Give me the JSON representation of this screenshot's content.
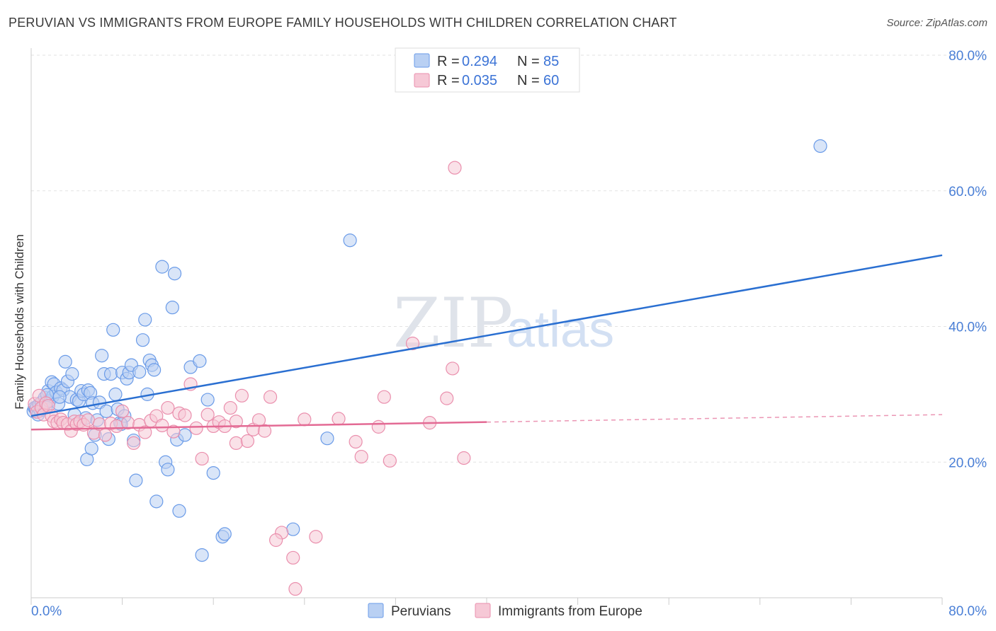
{
  "title": "PERUVIAN VS IMMIGRANTS FROM EUROPE FAMILY HOUSEHOLDS WITH CHILDREN CORRELATION CHART",
  "source": "Source: ZipAtlas.com",
  "watermark": {
    "zip": "ZIP",
    "atlas": "atlas"
  },
  "chart_data": {
    "type": "scatter",
    "title": "PERUVIAN VS IMMIGRANTS FROM EUROPE FAMILY HOUSEHOLDS WITH CHILDREN CORRELATION CHART",
    "xlabel": "",
    "ylabel": "Family Households with Children",
    "xlim": [
      0,
      80
    ],
    "ylim": [
      0,
      80
    ],
    "x_tick_labels": [
      "0.0%",
      "80.0%"
    ],
    "y_ticks": [
      20,
      40,
      60,
      80
    ],
    "y_tick_labels": [
      "20.0%",
      "40.0%",
      "60.0%",
      "80.0%"
    ],
    "grid": true,
    "legend": {
      "position": "top-center",
      "entries": [
        {
          "r_label": "R =",
          "r_value": "0.294",
          "n_label": "N =",
          "n_value": "85"
        },
        {
          "r_label": "R =",
          "r_value": "0.035",
          "n_label": "N =",
          "n_value": "60"
        }
      ]
    },
    "series": [
      {
        "name": "Peruvians",
        "color": "#6a9be8",
        "fill": "#b9d0f3",
        "line_color": "#2a6fd1",
        "trend": {
          "x0": 0,
          "y0": 26.8,
          "x1": 80,
          "y1": 50.5,
          "dashed_from": null
        },
        "points": [
          [
            0.2,
            27.5
          ],
          [
            0.3,
            28.0
          ],
          [
            0.4,
            27.8
          ],
          [
            0.5,
            28.2
          ],
          [
            0.6,
            27.0
          ],
          [
            0.7,
            28.5
          ],
          [
            0.8,
            27.6
          ],
          [
            0.9,
            28.8
          ],
          [
            1.0,
            27.9
          ],
          [
            1.1,
            28.3
          ],
          [
            1.2,
            29.5
          ],
          [
            1.3,
            28.1
          ],
          [
            1.5,
            30.5
          ],
          [
            1.6,
            29.0
          ],
          [
            1.8,
            31.8
          ],
          [
            1.9,
            29.7
          ],
          [
            2.0,
            31.5
          ],
          [
            2.2,
            30.3
          ],
          [
            2.4,
            28.6
          ],
          [
            2.6,
            30.9
          ],
          [
            2.8,
            30.6
          ],
          [
            3.0,
            34.8
          ],
          [
            3.2,
            31.9
          ],
          [
            3.4,
            29.6
          ],
          [
            3.6,
            33.0
          ],
          [
            3.8,
            27.0
          ],
          [
            4.0,
            29.2
          ],
          [
            4.2,
            29.0
          ],
          [
            4.4,
            30.5
          ],
          [
            4.6,
            30.0
          ],
          [
            4.8,
            26.5
          ],
          [
            5.0,
            30.6
          ],
          [
            5.2,
            30.2
          ],
          [
            5.4,
            28.7
          ],
          [
            5.6,
            24.0
          ],
          [
            5.8,
            26.2
          ],
          [
            6.0,
            28.8
          ],
          [
            6.2,
            35.7
          ],
          [
            6.4,
            33.0
          ],
          [
            6.6,
            27.5
          ],
          [
            6.8,
            23.4
          ],
          [
            7.0,
            33.0
          ],
          [
            7.2,
            39.5
          ],
          [
            7.4,
            30.0
          ],
          [
            7.6,
            27.8
          ],
          [
            7.8,
            25.8
          ],
          [
            8.0,
            33.2
          ],
          [
            8.2,
            26.8
          ],
          [
            8.4,
            32.3
          ],
          [
            8.6,
            33.2
          ],
          [
            8.8,
            34.3
          ],
          [
            9.0,
            23.2
          ],
          [
            9.2,
            17.3
          ],
          [
            9.5,
            33.3
          ],
          [
            9.8,
            38.0
          ],
          [
            10.0,
            41.0
          ],
          [
            10.2,
            30.0
          ],
          [
            10.4,
            35.0
          ],
          [
            10.6,
            34.3
          ],
          [
            10.8,
            33.6
          ],
          [
            11.0,
            14.2
          ],
          [
            11.5,
            48.8
          ],
          [
            11.8,
            20.0
          ],
          [
            12.0,
            18.9
          ],
          [
            12.4,
            42.8
          ],
          [
            12.6,
            47.8
          ],
          [
            12.8,
            23.3
          ],
          [
            13.0,
            12.8
          ],
          [
            13.5,
            24.0
          ],
          [
            14.0,
            34.0
          ],
          [
            14.8,
            34.9
          ],
          [
            15.0,
            6.3
          ],
          [
            15.5,
            29.2
          ],
          [
            16.0,
            18.4
          ],
          [
            16.8,
            9.0
          ],
          [
            17.0,
            9.4
          ],
          [
            4.9,
            20.4
          ],
          [
            5.3,
            22.0
          ],
          [
            7.9,
            25.6
          ],
          [
            2.5,
            29.6
          ],
          [
            23.0,
            10.1
          ],
          [
            26.0,
            23.5
          ],
          [
            28.0,
            52.7
          ],
          [
            69.3,
            66.6
          ],
          [
            1.4,
            29.9
          ]
        ]
      },
      {
        "name": "Immigrants from Europe",
        "color": "#ea8fad",
        "fill": "#f6c8d6",
        "line_color": "#e36a94",
        "trend": {
          "x0": 0,
          "y0": 24.8,
          "x1": 80,
          "y1": 27.0,
          "dashed_from": 40
        },
        "points": [
          [
            0.3,
            28.6
          ],
          [
            0.5,
            27.4
          ],
          [
            0.7,
            29.8
          ],
          [
            0.9,
            28.0
          ],
          [
            1.1,
            27.0
          ],
          [
            1.3,
            28.7
          ],
          [
            1.5,
            28.3
          ],
          [
            1.8,
            26.8
          ],
          [
            2.0,
            26.0
          ],
          [
            2.3,
            25.8
          ],
          [
            2.6,
            26.3
          ],
          [
            2.8,
            25.8
          ],
          [
            3.2,
            25.6
          ],
          [
            3.5,
            24.6
          ],
          [
            3.8,
            26.0
          ],
          [
            4.0,
            25.6
          ],
          [
            4.3,
            26.0
          ],
          [
            4.6,
            25.5
          ],
          [
            5.0,
            26.2
          ],
          [
            5.5,
            24.3
          ],
          [
            6.0,
            25.6
          ],
          [
            6.5,
            24.0
          ],
          [
            7.0,
            25.7
          ],
          [
            7.5,
            25.3
          ],
          [
            8.0,
            27.5
          ],
          [
            8.5,
            25.8
          ],
          [
            9.0,
            22.8
          ],
          [
            9.5,
            25.5
          ],
          [
            10.0,
            24.4
          ],
          [
            10.5,
            26.1
          ],
          [
            11.0,
            26.8
          ],
          [
            11.5,
            25.4
          ],
          [
            12.0,
            28.0
          ],
          [
            12.5,
            24.5
          ],
          [
            13.0,
            27.2
          ],
          [
            13.5,
            26.9
          ],
          [
            14.0,
            31.5
          ],
          [
            14.5,
            25.0
          ],
          [
            15.0,
            20.5
          ],
          [
            15.5,
            27.0
          ],
          [
            16.0,
            25.3
          ],
          [
            16.5,
            25.9
          ],
          [
            17.0,
            25.3
          ],
          [
            17.5,
            28.0
          ],
          [
            18.0,
            22.8
          ],
          [
            18.5,
            29.8
          ],
          [
            19.0,
            23.1
          ],
          [
            19.5,
            24.8
          ],
          [
            20.0,
            26.2
          ],
          [
            20.5,
            24.6
          ],
          [
            21.0,
            29.6
          ],
          [
            22.0,
            9.6
          ],
          [
            21.5,
            8.5
          ],
          [
            23.0,
            5.9
          ],
          [
            23.2,
            1.3
          ],
          [
            24.0,
            26.3
          ],
          [
            25.0,
            9.0
          ],
          [
            27.0,
            26.4
          ],
          [
            28.5,
            23.0
          ],
          [
            29.0,
            20.8
          ]
        ],
        "extra_points": [
          [
            30.5,
            25.2
          ],
          [
            31.0,
            29.6
          ],
          [
            31.5,
            20.2
          ],
          [
            33.5,
            37.5
          ],
          [
            35.0,
            25.8
          ],
          [
            36.5,
            29.4
          ],
          [
            37.0,
            33.8
          ],
          [
            37.2,
            63.4
          ],
          [
            38.0,
            20.6
          ],
          [
            18.0,
            26.0
          ]
        ]
      }
    ]
  },
  "bottom_legend": [
    "Peruvians",
    "Immigrants from Europe"
  ]
}
